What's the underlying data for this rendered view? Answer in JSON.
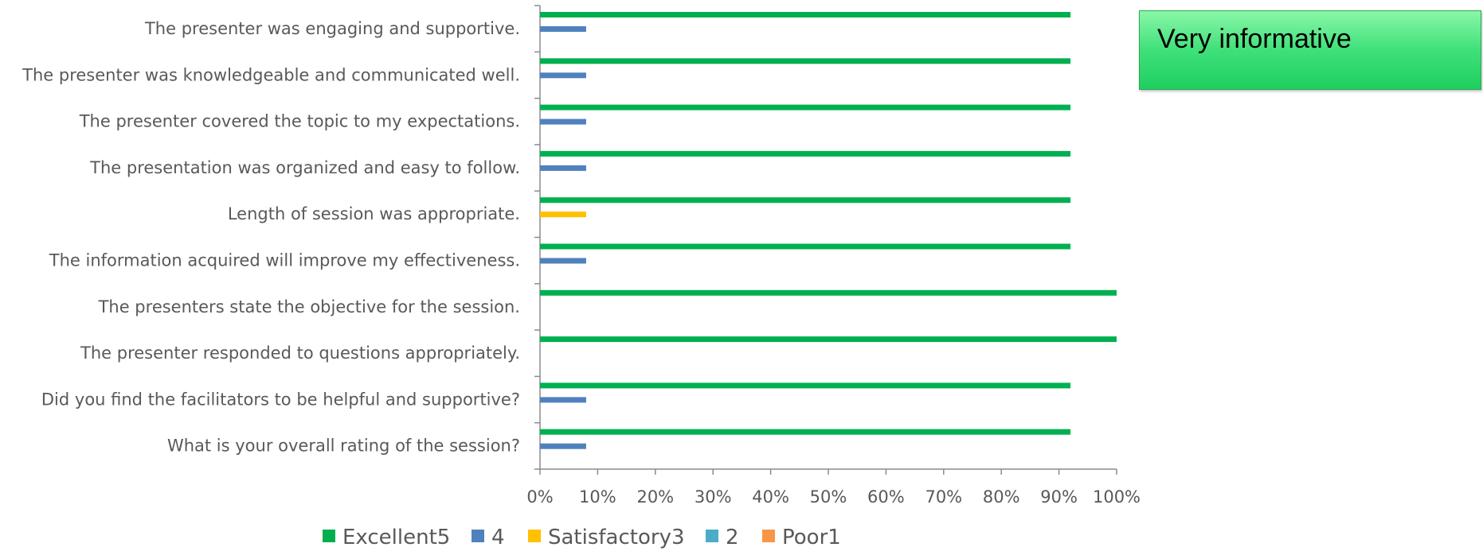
{
  "chart_data": {
    "type": "bar",
    "orientation": "horizontal",
    "categories": [
      "The presenter was engaging and supportive.",
      "The presenter was knowledgeable and communicated well.",
      "The presenter covered the topic to my expectations.",
      "The presentation was organized and easy to follow.",
      "Length of session was appropriate.",
      "The information acquired will improve my effectiveness.",
      "The presenters state the objective for the session.",
      "The presenter responded to questions appropriately.",
      "Did you find the facilitators to be helpful and supportive?",
      "What is your overall rating of the session?"
    ],
    "series": [
      {
        "name": "Excellent5",
        "color": "#00B050",
        "values": [
          92,
          92,
          92,
          92,
          92,
          92,
          100,
          100,
          92,
          92
        ]
      },
      {
        "name": "4",
        "color": "#4F81BD",
        "values": [
          8,
          8,
          8,
          8,
          0,
          8,
          0,
          0,
          8,
          8
        ]
      },
      {
        "name": "Satisfactory3",
        "color": "#FFC000",
        "values": [
          0,
          0,
          0,
          0,
          8,
          0,
          0,
          0,
          0,
          0
        ]
      },
      {
        "name": "2",
        "color": "#4BACC6",
        "values": [
          0,
          0,
          0,
          0,
          0,
          0,
          0,
          0,
          0,
          0
        ]
      },
      {
        "name": "Poor1",
        "color": "#F79646",
        "values": [
          0,
          0,
          0,
          0,
          0,
          0,
          0,
          0,
          0,
          0
        ]
      }
    ],
    "xlim": [
      0,
      100
    ],
    "x_ticks": [
      "0%",
      "10%",
      "20%",
      "30%",
      "40%",
      "50%",
      "60%",
      "70%",
      "80%",
      "90%",
      "100%"
    ],
    "grid": false,
    "legend_position": "bottom"
  },
  "note": {
    "text": "Very informative"
  }
}
